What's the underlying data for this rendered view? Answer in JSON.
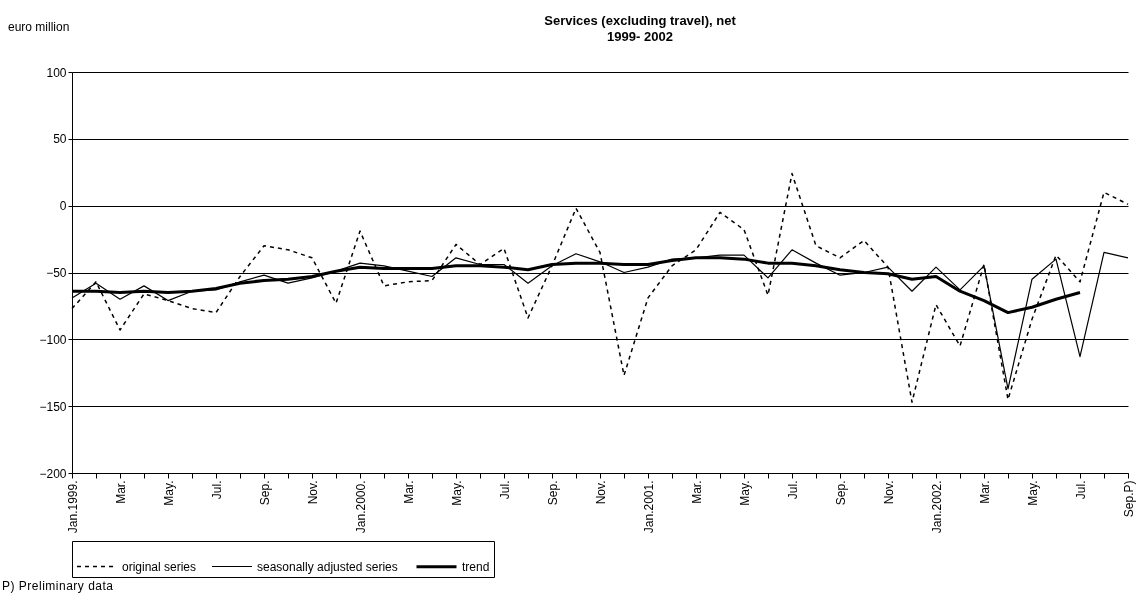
{
  "chart_data": {
    "type": "line",
    "title": "Services (excluding travel), net",
    "subtitle": "1999- 2002",
    "ylabel": "euro million",
    "categories": [
      "Jan.1999.",
      null,
      "Mar.",
      null,
      "May.",
      null,
      "Jul.",
      null,
      "Sep.",
      null,
      "Nov.",
      null,
      "Jan.2000.",
      null,
      "Mar.",
      null,
      "May.",
      null,
      "Jul.",
      null,
      "Sep.",
      null,
      "Nov.",
      null,
      "Jan.2001.",
      null,
      "Mar.",
      null,
      "May.",
      null,
      "Jul.",
      null,
      "Sep.",
      null,
      "Nov.",
      null,
      "Jan.2002.",
      null,
      "Mar.",
      null,
      "May.",
      null,
      "Jul.",
      null,
      "Sep.P)"
    ],
    "series": [
      {
        "name": "original series",
        "color": "#000000",
        "line_style": "dashed",
        "values": [
          -77,
          -57,
          -93,
          -66,
          -71,
          -77,
          -80,
          -53,
          -30,
          -33,
          -39,
          -73,
          -19,
          -60,
          -57,
          -56,
          -29,
          -44,
          -32,
          -84,
          -45,
          -2,
          -35,
          -127,
          -69,
          -45,
          -33,
          -5,
          -18,
          -67,
          24,
          -30,
          -39,
          -26,
          -46,
          -147,
          -74,
          -105,
          -44,
          -145,
          -85,
          -37,
          -57,
          10,
          1
        ]
      },
      {
        "name": "seasonally adjusted series",
        "color": "#000000",
        "line_style": "solid",
        "values": [
          -69,
          -58,
          -70,
          -60,
          -71,
          -64,
          -63,
          -57,
          -52,
          -58,
          -54,
          -49,
          -43,
          -45,
          -49,
          -53,
          -39,
          -44,
          -44,
          -58,
          -45,
          -36,
          -42,
          -50,
          -46,
          -40,
          -39,
          -37,
          -37,
          -54,
          -33,
          -43,
          -52,
          -50,
          -46,
          -64,
          -46,
          -63,
          -45,
          -137,
          -55,
          -40,
          -113,
          -35,
          -39
        ]
      },
      {
        "name": "trend",
        "color": "#000000",
        "line_style": "solid",
        "values": [
          -64,
          -64,
          -65,
          -64,
          -65,
          -64,
          -62,
          -58,
          -56,
          -55,
          -53,
          -49,
          -46,
          -47,
          -47,
          -47,
          -45,
          -45,
          -46,
          -48,
          -44,
          -43,
          -43,
          -44,
          -44,
          -41,
          -39,
          -39,
          -40,
          -43,
          -43,
          -45,
          -48,
          -50,
          -51,
          -55,
          -53,
          -64,
          -71,
          -80,
          -76,
          -70,
          -65,
          null,
          null
        ]
      }
    ],
    "ylim": [
      -200,
      100
    ],
    "yticks": [
      -200,
      -150,
      -100,
      -50,
      0,
      50,
      100
    ],
    "grid": "y",
    "legend": "bottom",
    "marker": "none",
    "annotations": [
      "P) Preliminary data"
    ]
  }
}
